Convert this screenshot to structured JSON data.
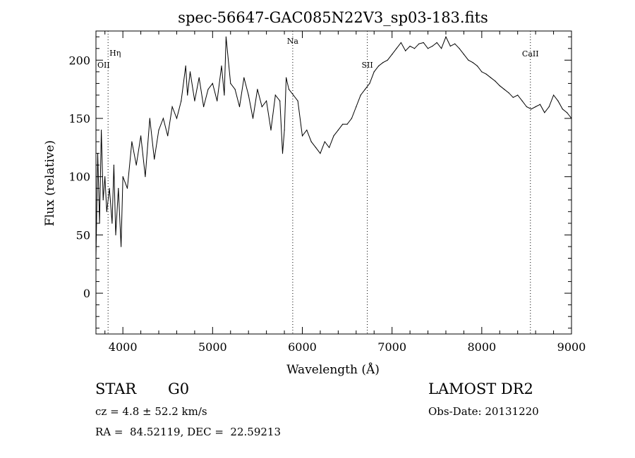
{
  "chart_data": {
    "type": "line",
    "title": "spec-56647-GAC085N22V3_sp03-183.fits",
    "xlabel": "Wavelength (Å)",
    "ylabel": "Flux (relative)",
    "xlim": [
      3700,
      9000
    ],
    "ylim": [
      -35,
      225
    ],
    "x_ticks": [
      4000,
      5000,
      6000,
      7000,
      8000,
      9000
    ],
    "y_ticks": [
      0,
      50,
      100,
      150,
      200
    ],
    "line_color": "#000000",
    "series": [
      {
        "x": [
          3700,
          3720,
          3740,
          3760,
          3780,
          3800,
          3820,
          3850,
          3880,
          3900,
          3920,
          3950,
          3980,
          4000,
          4050,
          4100,
          4150,
          4200,
          4250,
          4300,
          4350,
          4400,
          4450,
          4500,
          4550,
          4600,
          4650,
          4700,
          4720,
          4750,
          4800,
          4850,
          4900,
          4950,
          5000,
          5050,
          5100,
          5130,
          5150,
          5200,
          5250,
          5300,
          5350,
          5400,
          5450,
          5500,
          5550,
          5600,
          5650,
          5700,
          5750,
          5780,
          5800,
          5820,
          5850,
          5900,
          5950,
          6000,
          6050,
          6100,
          6150,
          6200,
          6250,
          6300,
          6350,
          6400,
          6450,
          6500,
          6550,
          6600,
          6650,
          6700,
          6750,
          6800,
          6850,
          6900,
          6950,
          7000,
          7050,
          7100,
          7150,
          7200,
          7250,
          7300,
          7350,
          7400,
          7450,
          7500,
          7550,
          7600,
          7650,
          7700,
          7750,
          7800,
          7850,
          7900,
          7950,
          8000,
          8050,
          8100,
          8150,
          8200,
          8250,
          8300,
          8350,
          8400,
          8450,
          8500,
          8550,
          8600,
          8650,
          8700,
          8750,
          8800,
          8850,
          8900,
          8950,
          9000
        ],
        "y": [
          30,
          120,
          60,
          140,
          80,
          100,
          70,
          90,
          60,
          110,
          50,
          90,
          40,
          100,
          90,
          130,
          110,
          135,
          100,
          150,
          115,
          140,
          150,
          135,
          160,
          150,
          165,
          195,
          170,
          190,
          165,
          185,
          160,
          175,
          180,
          165,
          195,
          170,
          220,
          180,
          175,
          160,
          185,
          170,
          150,
          175,
          160,
          165,
          140,
          170,
          165,
          120,
          140,
          185,
          175,
          170,
          165,
          135,
          140,
          130,
          125,
          120,
          130,
          125,
          135,
          140,
          145,
          145,
          150,
          160,
          170,
          175,
          180,
          190,
          195,
          198,
          200,
          205,
          210,
          215,
          208,
          212,
          210,
          214,
          215,
          210,
          212,
          215,
          210,
          220,
          212,
          214,
          210,
          205,
          200,
          198,
          195,
          190,
          188,
          185,
          182,
          178,
          175,
          172,
          168,
          170,
          165,
          160,
          158,
          160,
          162,
          155,
          160,
          170,
          165,
          158,
          155,
          150
        ]
      }
    ],
    "line_markers": [
      {
        "label": "Hη",
        "x": 3835
      },
      {
        "label": "OII",
        "x": 3727
      },
      {
        "label": "Na",
        "x": 5893
      },
      {
        "label": "SII",
        "x": 6724
      },
      {
        "label": "CaII",
        "x": 8542
      }
    ]
  },
  "footer": {
    "object_class": "STAR",
    "subclass": "G0",
    "survey": "LAMOST DR2",
    "cz": "cz = 4.8 ± 52.2 km/s",
    "obs_date": "Obs-Date: 20131220",
    "coords": "RA =  84.52119, DEC =  22.59213"
  }
}
